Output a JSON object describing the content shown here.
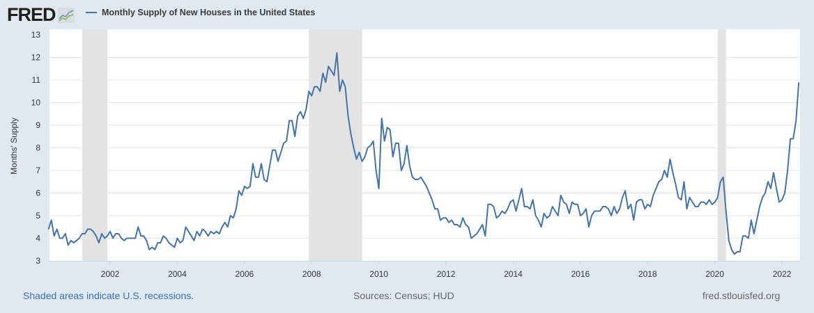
{
  "logo": {
    "text": "FRED"
  },
  "colors": {
    "line": "#4572a7",
    "recession": "#e3e3e3",
    "background": "#e1e9f0",
    "link": "#3a6fb0"
  },
  "footer": {
    "recession_note": "Shaded areas indicate U.S. recessions.",
    "sources": "Sources: Census; HUD",
    "site": "fred.stlouisfed.org"
  },
  "chart_data": {
    "type": "line",
    "title": "",
    "xlabel": "",
    "ylabel": "Months' Supply",
    "ylim": [
      3,
      13
    ],
    "yticks": [
      "3",
      "4",
      "5",
      "6",
      "7",
      "8",
      "9",
      "10",
      "11",
      "12",
      "13"
    ],
    "xticks": [
      "2002",
      "2004",
      "2006",
      "2008",
      "2010",
      "2012",
      "2014",
      "2016",
      "2018",
      "2020",
      "2022"
    ],
    "grid": true,
    "legend_position": "top-left",
    "start": "2000-03",
    "frequency": "monthly",
    "recessions": [
      [
        "2001-03",
        "2001-11"
      ],
      [
        "2007-12",
        "2009-06"
      ],
      [
        "2020-02",
        "2020-04"
      ]
    ],
    "series": [
      {
        "name": "Monthly Supply of New Houses in the United States",
        "values": [
          4.4,
          4.8,
          4.1,
          4.4,
          4.0,
          4.0,
          4.2,
          3.7,
          3.9,
          3.8,
          3.9,
          4.0,
          4.2,
          4.2,
          4.4,
          4.4,
          4.3,
          4.1,
          3.8,
          4.2,
          4.0,
          4.1,
          4.3,
          4.0,
          4.2,
          4.2,
          4.0,
          3.9,
          4.0,
          4.0,
          4.0,
          4.0,
          4.5,
          4.1,
          4.1,
          3.9,
          3.5,
          3.6,
          3.5,
          3.8,
          3.8,
          4.1,
          4.0,
          3.8,
          3.7,
          3.6,
          4.0,
          3.8,
          3.9,
          4.5,
          4.3,
          4.1,
          3.9,
          4.3,
          4.1,
          4.4,
          4.3,
          4.1,
          4.3,
          4.2,
          4.3,
          4.2,
          4.5,
          4.7,
          4.5,
          5.0,
          4.9,
          5.3,
          6.1,
          5.9,
          6.3,
          6.2,
          6.3,
          7.3,
          6.7,
          6.7,
          7.3,
          6.6,
          6.5,
          7.2,
          7.9,
          7.9,
          7.4,
          7.8,
          8.2,
          8.3,
          9.2,
          9.2,
          8.5,
          9.4,
          9.6,
          9.3,
          9.7,
          10.5,
          10.3,
          10.7,
          10.7,
          10.5,
          11.3,
          10.9,
          11.6,
          11.4,
          11.2,
          12.2,
          10.5,
          11.0,
          10.7,
          9.4,
          8.6,
          8.0,
          7.5,
          7.8,
          7.4,
          7.6,
          8.0,
          8.1,
          8.3,
          7.0,
          6.2,
          9.3,
          8.3,
          8.9,
          8.8,
          7.6,
          8.2,
          8.2,
          7.0,
          7.3,
          8.1,
          7.2,
          6.7,
          6.6,
          6.6,
          6.7,
          6.5,
          6.3,
          6.0,
          5.7,
          5.3,
          5.3,
          4.8,
          4.9,
          4.9,
          4.7,
          4.8,
          4.6,
          4.6,
          4.5,
          4.9,
          4.6,
          4.5,
          4.0,
          4.1,
          4.2,
          4.4,
          4.6,
          4.1,
          5.5,
          5.5,
          5.4,
          4.9,
          5.0,
          5.2,
          5.1,
          5.3,
          5.6,
          5.7,
          5.2,
          5.7,
          6.2,
          5.4,
          5.4,
          5.3,
          5.7,
          5.0,
          4.8,
          4.5,
          5.1,
          4.9,
          5.0,
          5.4,
          5.2,
          5.0,
          5.9,
          5.6,
          5.5,
          5.1,
          5.6,
          5.5,
          5.5,
          5.0,
          5.1,
          5.3,
          4.5,
          5.0,
          5.2,
          5.2,
          5.2,
          5.4,
          5.4,
          5.3,
          5.0,
          5.4,
          5.1,
          5.3,
          5.8,
          6.1,
          5.3,
          5.5,
          4.8,
          5.6,
          5.7,
          5.7,
          5.3,
          5.5,
          5.4,
          5.9,
          6.2,
          6.5,
          6.6,
          7.0,
          6.7,
          7.5,
          6.9,
          6.4,
          5.8,
          5.7,
          6.5,
          5.3,
          5.8,
          5.6,
          5.4,
          5.4,
          5.6,
          5.6,
          5.5,
          5.7,
          5.5,
          5.6,
          5.8,
          6.5,
          6.7,
          5.2,
          3.9,
          3.5,
          3.3,
          3.4,
          3.4,
          4.1,
          4.1,
          4.0,
          4.8,
          4.2,
          4.8,
          5.4,
          5.8,
          6.0,
          6.5,
          6.2,
          6.9,
          6.2,
          5.6,
          5.7,
          6.0,
          7.0,
          8.4,
          8.4,
          9.2,
          10.9
        ]
      }
    ]
  }
}
